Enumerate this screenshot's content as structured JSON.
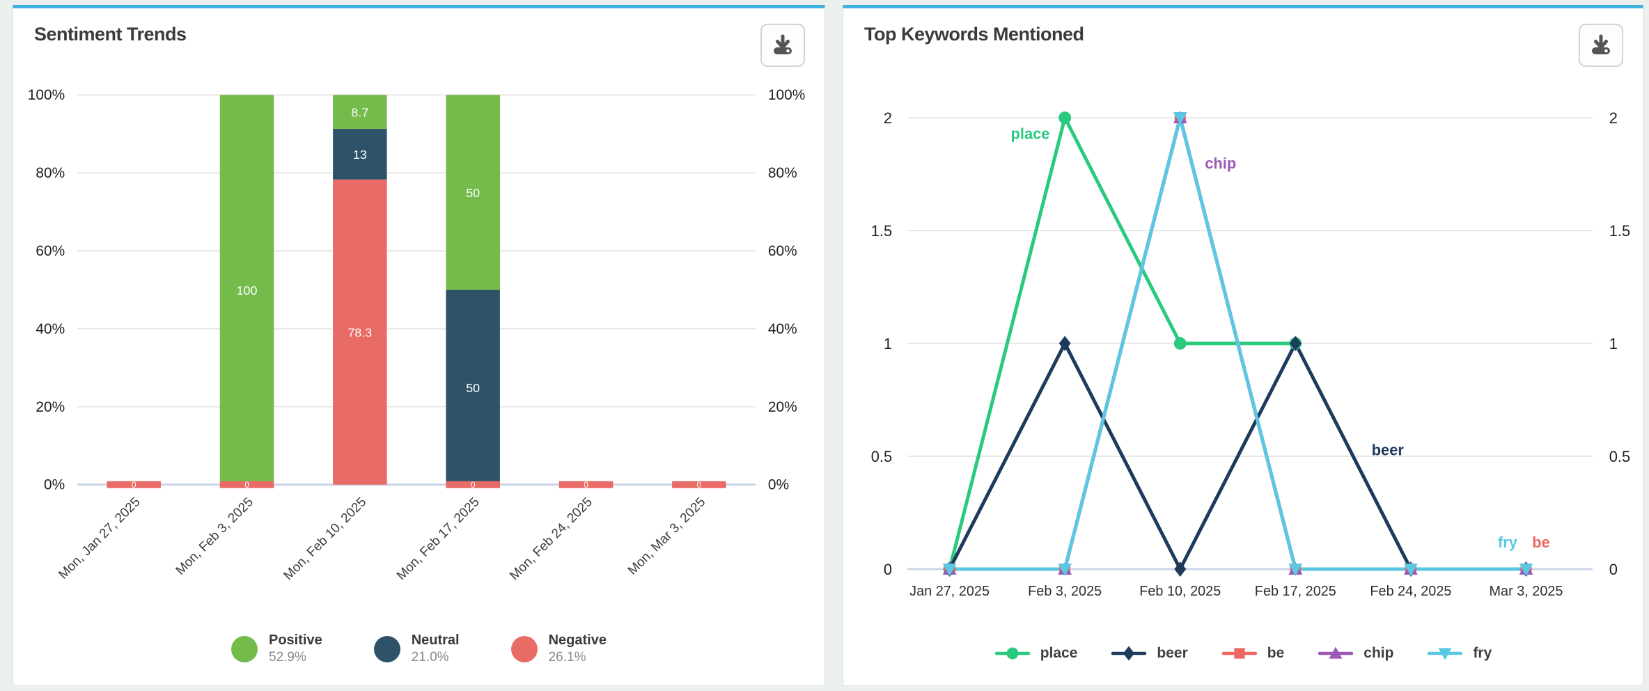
{
  "colors": {
    "accent": "#41B1E1",
    "page_background": "#ECF1EE",
    "axis_baseline": "#C9D4E6",
    "gridline": "#E8E8E8"
  },
  "left_panel": {
    "title": "Sentiment Trends",
    "download_icon": "download-icon",
    "chart_data": {
      "type": "bar",
      "stacked": true,
      "title": "Sentiment Trends",
      "categories": [
        "Mon, Jan 27, 2025",
        "Mon, Feb 3, 2025",
        "Mon, Feb 10, 2025",
        "Mon, Feb 17, 2025",
        "Mon, Feb 24, 2025",
        "Mon, Mar 3, 2025"
      ],
      "ylim": [
        0,
        100
      ],
      "y_ticks": [
        {
          "v": 0,
          "label": "0%"
        },
        {
          "v": 20,
          "label": "20%"
        },
        {
          "v": 40,
          "label": "40%"
        },
        {
          "v": 60,
          "label": "60%"
        },
        {
          "v": 80,
          "label": "80%"
        },
        {
          "v": 100,
          "label": "100%"
        }
      ],
      "grid": true,
      "series": [
        {
          "name": "Positive",
          "color": "#74BB4B",
          "values": [
            0,
            100,
            8.7,
            50,
            0,
            0
          ]
        },
        {
          "name": "Neutral",
          "color": "#2E5368",
          "values": [
            0,
            0,
            13,
            50,
            0,
            0
          ]
        },
        {
          "name": "Negative",
          "color": "#E96B66",
          "values": [
            0,
            0,
            78.3,
            0,
            0,
            0
          ]
        }
      ],
      "zero_marker_series": "Negative"
    },
    "legend": [
      {
        "name": "Positive",
        "value": "52.9%",
        "color": "#74BB4B"
      },
      {
        "name": "Neutral",
        "value": "21.0%",
        "color": "#2E5368"
      },
      {
        "name": "Negative",
        "value": "26.1%",
        "color": "#E96B66"
      }
    ]
  },
  "right_panel": {
    "title": "Top Keywords Mentioned",
    "download_icon": "download-icon",
    "chart_data": {
      "type": "line",
      "title": "Top Keywords Mentioned",
      "x": [
        "Jan 27, 2025",
        "Feb 3, 2025",
        "Feb 10, 2025",
        "Feb 17, 2025",
        "Feb 24, 2025",
        "Mar 3, 2025"
      ],
      "ylim": [
        0,
        2
      ],
      "y_ticks": [
        {
          "v": 0,
          "label": "0"
        },
        {
          "v": 0.5,
          "label": "0.5"
        },
        {
          "v": 1,
          "label": "1"
        },
        {
          "v": 1.5,
          "label": "1.5"
        },
        {
          "v": 2,
          "label": "2"
        }
      ],
      "grid": true,
      "legend_position": "bottom",
      "series": [
        {
          "name": "place",
          "color": "#29C97E",
          "marker": "circle",
          "values": [
            0,
            2,
            1,
            1,
            null,
            null
          ]
        },
        {
          "name": "beer",
          "color": "#1E3B5C",
          "marker": "diamond",
          "values": [
            0,
            1,
            0,
            1,
            0,
            0
          ]
        },
        {
          "name": "be",
          "color": "#ED6663",
          "marker": "square",
          "values": [
            0,
            0,
            2,
            0,
            0,
            0
          ]
        },
        {
          "name": "chip",
          "color": "#9B59B6",
          "marker": "triangle-up",
          "values": [
            0,
            0,
            2,
            0,
            0,
            0
          ]
        },
        {
          "name": "fry",
          "color": "#5BC8E3",
          "marker": "triangle-down",
          "values": [
            0,
            0,
            2,
            0,
            0,
            0
          ]
        }
      ],
      "annotations": [
        {
          "text": "place",
          "color": "#29C97E",
          "x": 0.7,
          "y": 1.93
        },
        {
          "text": "chip",
          "color": "#9B59B6",
          "x": 2.35,
          "y": 1.8
        },
        {
          "text": "beer",
          "color": "#1E3B5C",
          "x": 3.8,
          "y": 0.53
        },
        {
          "text": "fry",
          "color": "#5BC8E3",
          "x": 4.84,
          "y": 0.12
        },
        {
          "text": "be",
          "color": "#ED6663",
          "x": 5.13,
          "y": 0.12
        }
      ]
    },
    "legend": [
      {
        "name": "place",
        "color": "#29C97E",
        "marker": "circle"
      },
      {
        "name": "beer",
        "color": "#1E3B5C",
        "marker": "diamond"
      },
      {
        "name": "be",
        "color": "#ED6663",
        "marker": "square"
      },
      {
        "name": "chip",
        "color": "#9B59B6",
        "marker": "triangle-up"
      },
      {
        "name": "fry",
        "color": "#5BC8E3",
        "marker": "triangle-down"
      }
    ]
  }
}
